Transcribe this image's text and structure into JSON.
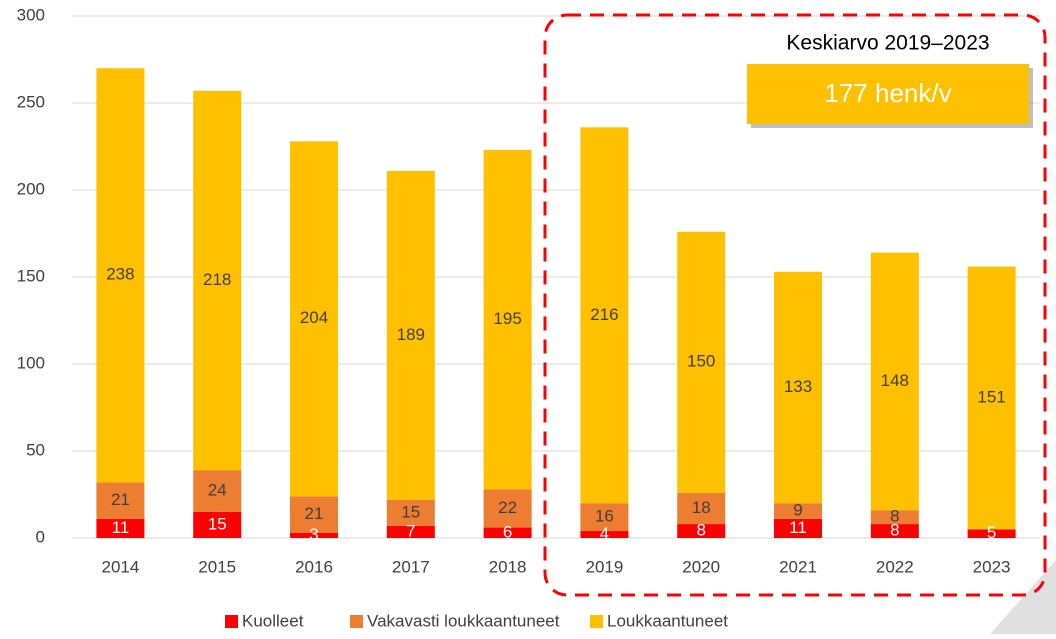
{
  "chart_data": {
    "type": "stacked_bar",
    "categories": [
      "2014",
      "2015",
      "2016",
      "2017",
      "2018",
      "2019",
      "2020",
      "2021",
      "2022",
      "2023"
    ],
    "series": [
      {
        "name": "Kuolleet",
        "color": "#ff0000",
        "values": [
          11,
          15,
          3,
          7,
          6,
          4,
          8,
          11,
          8,
          5
        ]
      },
      {
        "name": "Vakavasti loukkaantuneet",
        "color": "#ed7d31",
        "values": [
          21,
          24,
          21,
          15,
          22,
          16,
          18,
          9,
          8,
          null
        ]
      },
      {
        "name": "Loukkaantuneet",
        "color": "#ffc000",
        "values": [
          238,
          218,
          204,
          189,
          195,
          216,
          150,
          133,
          148,
          151
        ]
      }
    ],
    "ylim": [
      0,
      300
    ],
    "yticks": [
      0,
      50,
      100,
      150,
      200,
      250,
      300
    ],
    "grid": true,
    "legend": "bottom",
    "annotation": {
      "title": "Keskiarvo 2019–2023",
      "value_box": "177 henk/v"
    }
  }
}
